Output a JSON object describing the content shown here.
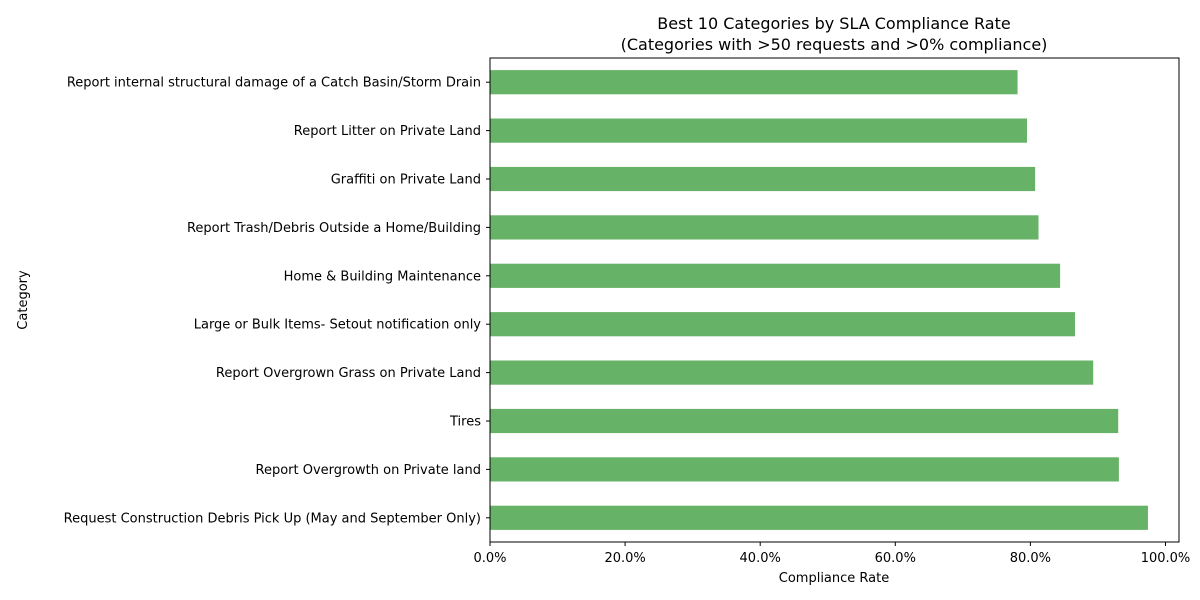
{
  "chart_data": {
    "type": "bar",
    "orientation": "horizontal",
    "title": "Best 10 Categories by SLA Compliance Rate",
    "subtitle": "(Categories with >50 requests and >0% compliance)",
    "xlabel": "Compliance Rate",
    "ylabel": "Category",
    "xlim": [
      0,
      1.02
    ],
    "xticks": [
      0,
      0.2,
      0.4,
      0.6,
      0.8,
      1.0
    ],
    "xtick_labels": [
      "0.0%",
      "20.0%",
      "40.0%",
      "60.0%",
      "80.0%",
      "100.0%"
    ],
    "bar_color": "#66b266",
    "grid": false,
    "categories": [
      "Report internal structural damage of a Catch Basin/Storm Drain",
      "Report Litter on Private Land",
      "Graffiti on Private Land",
      "Report Trash/Debris Outside a Home/Building",
      "Home & Building Maintenance",
      "Large or Bulk Items- Setout notification only",
      "Report Overgrown Grass on Private Land",
      "Tires",
      "Report Overgrowth on Private land",
      "Request Construction Debris Pick Up (May and September Only)"
    ],
    "values": [
      0.781,
      0.795,
      0.807,
      0.812,
      0.844,
      0.866,
      0.893,
      0.93,
      0.931,
      0.974
    ]
  }
}
